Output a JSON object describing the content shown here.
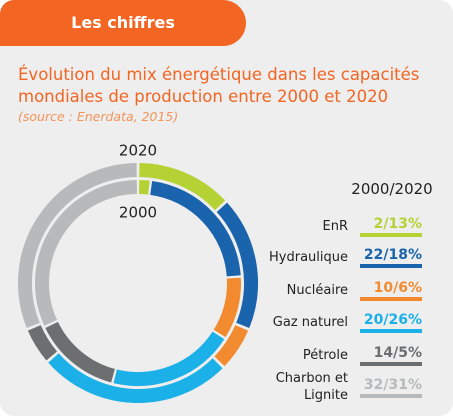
{
  "header": "Les chiffres",
  "chart_data": {
    "type": "donut",
    "title": "Évolution du mix énergétique dans les capacités mondiales de production entre 2000 et 2020",
    "subtitle": "(source : Enerdata, 2015)",
    "legend_title": "2000/2020",
    "categories": [
      "EnR",
      "Hydraulique",
      "Nucléaire",
      "Gaz naturel",
      "Pétrole",
      "Charbon et Lignite"
    ],
    "colors": [
      "#b4d234",
      "#1a63ad",
      "#f28b30",
      "#1cb0e8",
      "#6d6e70",
      "#b8b9bb"
    ],
    "series": [
      {
        "name": "2000",
        "values": [
          2,
          22,
          10,
          20,
          14,
          32
        ]
      },
      {
        "name": "2020",
        "values": [
          13,
          18,
          6,
          26,
          5,
          31
        ]
      }
    ],
    "value_labels": [
      "2/13%",
      "22/18%",
      "10/6%",
      "20/26%",
      "14/5%",
      "32/31%"
    ]
  }
}
